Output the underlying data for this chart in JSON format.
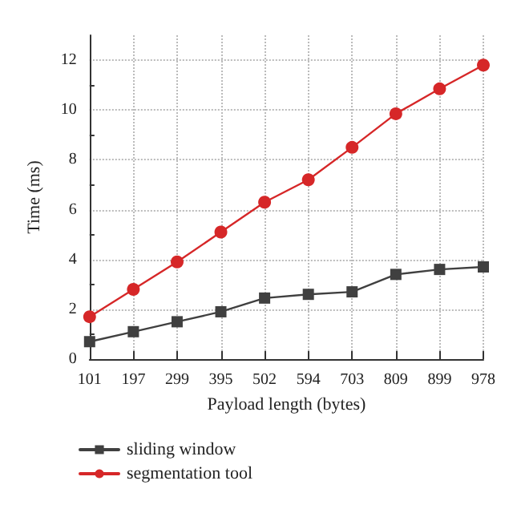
{
  "chart_data": {
    "type": "line",
    "xlabel": "Payload length (bytes)",
    "ylabel": "Time (ms)",
    "categories": [
      "101",
      "197",
      "299",
      "395",
      "502",
      "594",
      "703",
      "809",
      "899",
      "978"
    ],
    "series": [
      {
        "name": "sliding window",
        "color": "#404040",
        "marker": "square",
        "values": [
          0.7,
          1.1,
          1.5,
          1.9,
          2.45,
          2.6,
          2.7,
          3.4,
          3.6,
          3.7
        ]
      },
      {
        "name": "segmentation tool",
        "color": "#d62728",
        "marker": "circle",
        "values": [
          1.7,
          2.8,
          3.9,
          5.1,
          6.3,
          7.2,
          8.5,
          9.85,
          10.85,
          11.8
        ]
      }
    ],
    "ylim": [
      0,
      13
    ],
    "yticks": [
      0,
      2,
      4,
      6,
      8,
      10,
      12
    ],
    "grid": true,
    "legend": "bottom left",
    "line_style": "solid"
  }
}
